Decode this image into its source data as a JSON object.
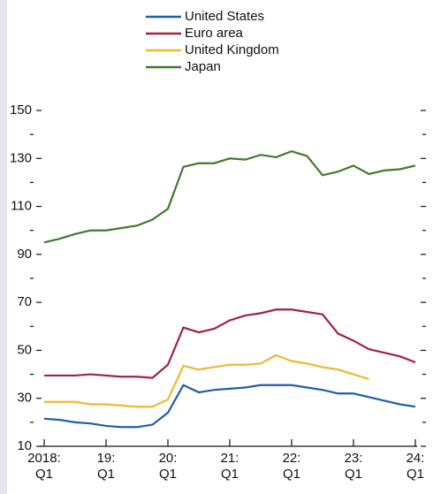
{
  "chart_data": {
    "type": "line",
    "categories": [
      "2018:\nQ1",
      null,
      null,
      null,
      "19:\nQ1",
      null,
      null,
      null,
      "20:\nQ1",
      null,
      null,
      null,
      "21:\nQ1",
      null,
      null,
      null,
      "22:\nQ1",
      null,
      null,
      null,
      "23:\nQ1",
      null,
      null,
      null,
      "24:\nQ1"
    ],
    "series": [
      {
        "name": "United States",
        "color": "#1f5fa8",
        "values": [
          21.5,
          21,
          20,
          19.5,
          18.5,
          18,
          18,
          19,
          24,
          35.5,
          32.5,
          33.5,
          34,
          34.5,
          35.5,
          35.5,
          35.5,
          34.5,
          33.5,
          32,
          32,
          30.5,
          29,
          27.5,
          26.5
        ]
      },
      {
        "name": "Euro area",
        "color": "#a3233a",
        "values": [
          39.5,
          39.5,
          39.5,
          40,
          39.5,
          39,
          39,
          38.5,
          44,
          59.5,
          57.5,
          59,
          62.5,
          64.5,
          65.5,
          67,
          67,
          66,
          65,
          57,
          54,
          50.5,
          49,
          47.5,
          45
        ]
      },
      {
        "name": "United Kingdom",
        "color": "#f0b830",
        "values": [
          28.5,
          28.5,
          28.5,
          27.5,
          27.5,
          27,
          26.5,
          26.5,
          29.5,
          43.5,
          42,
          43,
          44,
          44,
          44.5,
          48,
          45.5,
          44.5,
          43,
          42,
          40,
          38,
          null,
          null,
          null
        ]
      },
      {
        "name": "Japan",
        "color": "#3f7a2e",
        "values": [
          95,
          96.5,
          98.5,
          100,
          100,
          101,
          102,
          104.5,
          109,
          126.5,
          128,
          128,
          130,
          129.5,
          131.5,
          130.5,
          133,
          131,
          123,
          124.5,
          127,
          123.5,
          125,
          125.5,
          127
        ]
      }
    ],
    "ylim": [
      10,
      150
    ],
    "yticks": [
      10,
      30,
      50,
      70,
      90,
      110,
      130,
      150
    ],
    "yminorticks": [
      20,
      40,
      60,
      80,
      100,
      120,
      140
    ]
  }
}
